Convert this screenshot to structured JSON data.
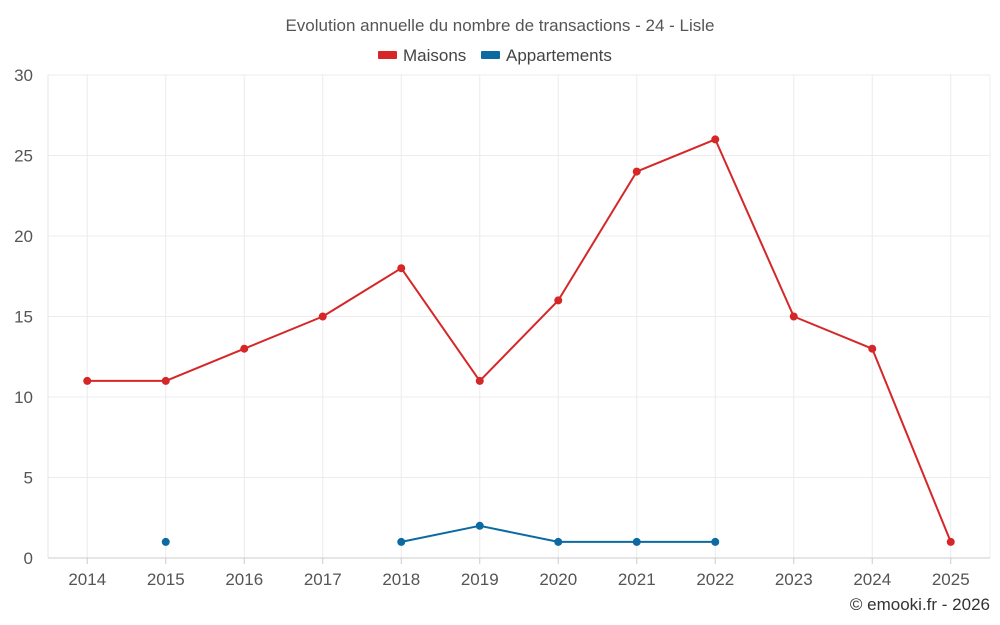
{
  "chart_data": {
    "type": "line",
    "title": "Evolution annuelle du nombre de transactions - 24 - Lisle",
    "categories": [
      "2014",
      "2015",
      "2016",
      "2017",
      "2018",
      "2019",
      "2020",
      "2021",
      "2022",
      "2023",
      "2024",
      "2025"
    ],
    "ylim": [
      0,
      30
    ],
    "yticks": [
      0,
      5,
      10,
      15,
      20,
      25,
      30
    ],
    "xlabel": "",
    "ylabel": "",
    "grid": true,
    "legend_position": "top-center",
    "series": [
      {
        "name": "Maisons",
        "color": "#d62728",
        "values": [
          11,
          11,
          13,
          15,
          18,
          11,
          16,
          24,
          26,
          15,
          13,
          1
        ]
      },
      {
        "name": "Appartements",
        "color": "#0b6aa1",
        "values": [
          null,
          1,
          null,
          null,
          1,
          2,
          1,
          1,
          1,
          null,
          null,
          null
        ]
      }
    ]
  },
  "credit": "© emooki.fr - 2026"
}
